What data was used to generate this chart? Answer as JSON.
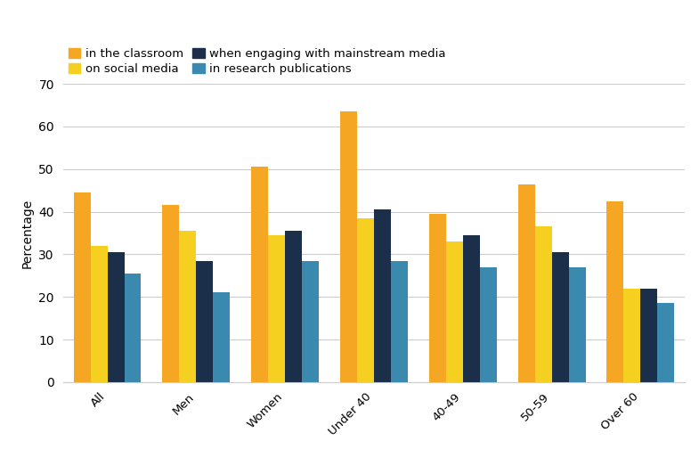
{
  "categories": [
    "All",
    "Men",
    "Women",
    "Under 40",
    "40-49",
    "50-59",
    "Over 60"
  ],
  "series": {
    "in the classroom": [
      44.5,
      41.5,
      50.5,
      63.5,
      39.5,
      46.5,
      42.5
    ],
    "on social media": [
      32.0,
      35.5,
      34.5,
      38.5,
      33.0,
      36.5,
      22.0
    ],
    "when engaging with mainstream media": [
      30.5,
      28.5,
      35.5,
      40.5,
      34.5,
      30.5,
      22.0
    ],
    "in research publications": [
      25.5,
      21.0,
      28.5,
      28.5,
      27.0,
      27.0,
      18.5
    ]
  },
  "colors": {
    "in the classroom": "#F5A623",
    "on social media": "#F5D020",
    "when engaging with mainstream media": "#1C2F4A",
    "in research publications": "#3A8AB0"
  },
  "ylabel": "Percentage",
  "ylim": [
    0,
    70
  ],
  "yticks": [
    0,
    10,
    20,
    30,
    40,
    50,
    60,
    70
  ],
  "background_color": "#FFFFFF",
  "grid_color": "#CCCCCC",
  "legend_fontsize": 9.5,
  "axis_label_fontsize": 10,
  "tick_label_fontsize": 9.5,
  "bar_width": 0.19,
  "legend_row1": [
    "in the classroom",
    "on social media"
  ],
  "legend_row2": [
    "when engaging with mainstream media",
    "in research publications"
  ]
}
